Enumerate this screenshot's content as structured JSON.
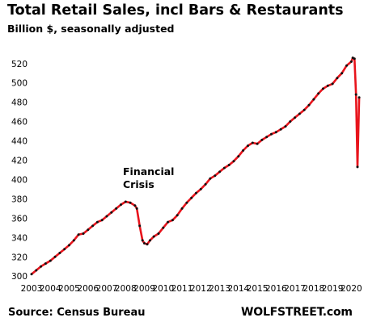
{
  "chart_data": {
    "type": "line",
    "title": "Total Retail Sales, incl Bars & Restaurants",
    "subtitle": "Billion $, seasonally adjusted",
    "xlabel": "",
    "ylabel": "",
    "x_ticks": [
      "2003",
      "2004",
      "2005",
      "2006",
      "2007",
      "2008",
      "2009",
      "2010",
      "2011",
      "2012",
      "2013",
      "2014",
      "2015",
      "2016",
      "2017",
      "2018",
      "2019",
      "2020"
    ],
    "y_ticks": [
      300,
      320,
      340,
      360,
      380,
      400,
      420,
      440,
      460,
      480,
      500,
      520
    ],
    "xlim": [
      2003,
      2020.5
    ],
    "ylim": [
      296,
      534
    ],
    "grid": false,
    "line_color": "#e8141c",
    "marker_color": "#111111",
    "annotation": {
      "text_line1": "Financial",
      "text_line2": "Crisis",
      "x": 2008.2,
      "y": 377
    },
    "series": [
      {
        "points": [
          [
            2003.0,
            302
          ],
          [
            2003.25,
            306
          ],
          [
            2003.5,
            310
          ],
          [
            2003.75,
            313
          ],
          [
            2004.0,
            316
          ],
          [
            2004.25,
            320
          ],
          [
            2004.5,
            324
          ],
          [
            2004.75,
            328
          ],
          [
            2005.0,
            332
          ],
          [
            2005.25,
            337
          ],
          [
            2005.5,
            343
          ],
          [
            2005.75,
            344
          ],
          [
            2006.0,
            348
          ],
          [
            2006.25,
            352
          ],
          [
            2006.5,
            356
          ],
          [
            2006.75,
            358
          ],
          [
            2007.0,
            362
          ],
          [
            2007.25,
            366
          ],
          [
            2007.5,
            370
          ],
          [
            2007.75,
            374
          ],
          [
            2008.0,
            377
          ],
          [
            2008.25,
            376
          ],
          [
            2008.5,
            373
          ],
          [
            2008.6,
            370
          ],
          [
            2008.75,
            352
          ],
          [
            2008.9,
            337
          ],
          [
            2009.0,
            334
          ],
          [
            2009.15,
            333
          ],
          [
            2009.3,
            337
          ],
          [
            2009.5,
            341
          ],
          [
            2009.75,
            344
          ],
          [
            2010.0,
            350
          ],
          [
            2010.25,
            356
          ],
          [
            2010.5,
            358
          ],
          [
            2010.75,
            363
          ],
          [
            2011.0,
            370
          ],
          [
            2011.25,
            376
          ],
          [
            2011.5,
            381
          ],
          [
            2011.75,
            386
          ],
          [
            2012.0,
            390
          ],
          [
            2012.25,
            395
          ],
          [
            2012.5,
            401
          ],
          [
            2012.75,
            404
          ],
          [
            2013.0,
            408
          ],
          [
            2013.25,
            412
          ],
          [
            2013.5,
            415
          ],
          [
            2013.75,
            419
          ],
          [
            2014.0,
            424
          ],
          [
            2014.25,
            430
          ],
          [
            2014.5,
            435
          ],
          [
            2014.75,
            438
          ],
          [
            2015.0,
            437
          ],
          [
            2015.25,
            441
          ],
          [
            2015.5,
            444
          ],
          [
            2015.75,
            447
          ],
          [
            2016.0,
            449
          ],
          [
            2016.25,
            452
          ],
          [
            2016.5,
            455
          ],
          [
            2016.75,
            460
          ],
          [
            2017.0,
            464
          ],
          [
            2017.25,
            468
          ],
          [
            2017.5,
            472
          ],
          [
            2017.75,
            477
          ],
          [
            2018.0,
            483
          ],
          [
            2018.25,
            489
          ],
          [
            2018.5,
            494
          ],
          [
            2018.75,
            497
          ],
          [
            2019.0,
            499
          ],
          [
            2019.25,
            505
          ],
          [
            2019.5,
            510
          ],
          [
            2019.75,
            518
          ],
          [
            2020.0,
            522
          ],
          [
            2020.08,
            526
          ],
          [
            2020.17,
            525
          ],
          [
            2020.25,
            488
          ],
          [
            2020.33,
            413
          ],
          [
            2020.42,
            485
          ]
        ]
      }
    ]
  },
  "source": "Source: Census Bureau",
  "brand": "WOLFSTREET.com"
}
